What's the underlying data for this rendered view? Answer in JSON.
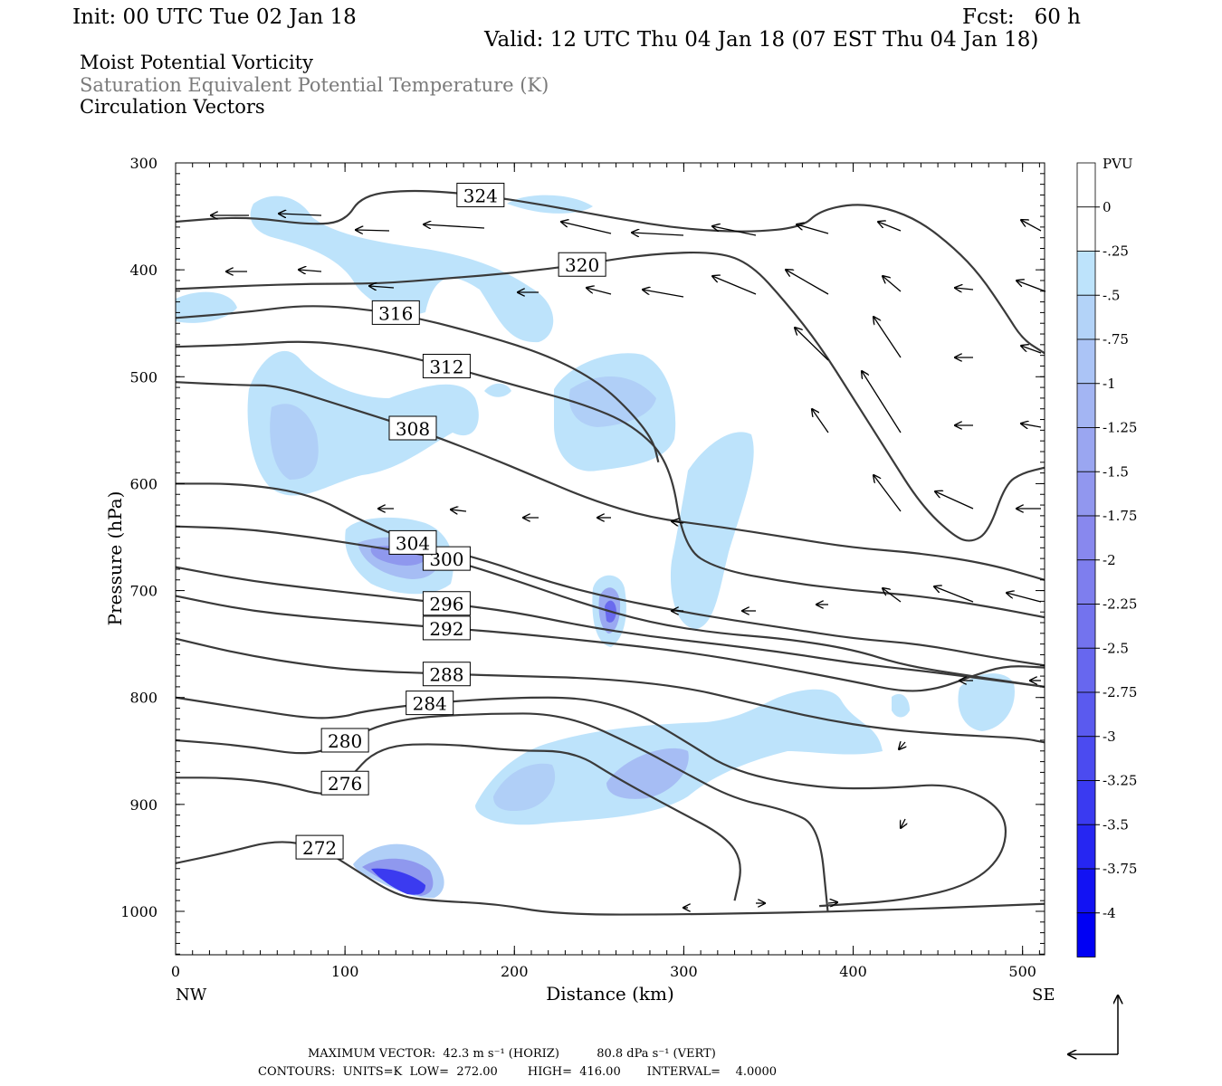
{
  "header": {
    "init": "Init: 00 UTC Tue 02 Jan 18",
    "fcst": "Fcst:   60 h",
    "valid": "Valid: 12 UTC Thu 04 Jan 18 (07 EST Thu 04 Jan 18)"
  },
  "titles": {
    "line1": "Moist Potential Vorticity",
    "line2": "Saturation Equivalent Potential Temperature (K)",
    "line3": "Circulation Vectors"
  },
  "footer": {
    "line1": "MAXIMUM VECTOR:  42.3 m s⁻¹ (HORIZ)          80.8 dPa s⁻¹ (VERT)",
    "line2": "CONTOURS:  UNITS=K  LOW=  272.00        HIGH=  416.00       INTERVAL=    4.0000"
  },
  "colors": {
    "contour": "#3a3a3a",
    "shade_025": "#bde3fb",
    "shade_050": "#b0cff7",
    "shade_075": "#a6bdf4",
    "shade_100": "#9aa9f1",
    "shade_125": "#8f98ee",
    "shade_150": "#7f7fef",
    "shade_200": "#6a6aee",
    "shade_250": "#5252ef",
    "shade_300": "#3b3bf0",
    "shade_400": "#0000f4"
  },
  "chart_data": {
    "type": "cross-section",
    "xlabel": "Distance (km)",
    "ylabel": "Pressure (hPa)",
    "xlim": [
      0,
      513
    ],
    "ylim": [
      1040,
      300
    ],
    "x_ticks": [
      0,
      100,
      200,
      300,
      400,
      500
    ],
    "y_ticks": [
      300,
      400,
      500,
      600,
      700,
      800,
      900,
      1000
    ],
    "x_end_labels": {
      "left": "NW",
      "right": "SE"
    },
    "colorbar": {
      "unit": "PVU",
      "levels": [
        "0",
        "-.25",
        "-.5",
        "-.75",
        "-1",
        "-1.25",
        "-1.5",
        "-1.75",
        "-2",
        "-2.25",
        "-2.5",
        "-2.75",
        "-3",
        "-3.25",
        "-3.5",
        "-3.75",
        "-4"
      ],
      "colors": [
        "#ffffff",
        "#ffffff",
        "#bde3fb",
        "#b3d3f8",
        "#abc4f6",
        "#a3b5f3",
        "#9aa6f1",
        "#9197ef",
        "#8888ee",
        "#7e7eee",
        "#7373ee",
        "#6767ef",
        "#5a5aef",
        "#4b4bf0",
        "#3a3af1",
        "#2626f2",
        "#1212f3",
        "#0000f4"
      ]
    },
    "theta_es_contours": [
      {
        "label": "272",
        "pts": [
          [
            0,
            955
          ],
          [
            30,
            945
          ],
          [
            60,
            933
          ],
          [
            85,
            940
          ],
          [
            105,
            960
          ],
          [
            130,
            985
          ],
          [
            150,
            990
          ],
          [
            190,
            993
          ],
          [
            225,
            1003
          ],
          [
            300,
            1003
          ],
          [
            400,
            1000
          ],
          [
            513,
            993
          ]
        ]
      },
      {
        "label": "276",
        "pts": [
          [
            0,
            875
          ],
          [
            30,
            875
          ],
          [
            60,
            880
          ],
          [
            90,
            893
          ],
          [
            100,
            880
          ],
          [
            120,
            845
          ],
          [
            160,
            843
          ],
          [
            200,
            850
          ],
          [
            235,
            850
          ],
          [
            260,
            875
          ],
          [
            295,
            905
          ],
          [
            325,
            930
          ],
          [
            335,
            955
          ],
          [
            330,
            990
          ]
        ]
      },
      {
        "label": "280",
        "pts": [
          [
            0,
            840
          ],
          [
            40,
            845
          ],
          [
            80,
            855
          ],
          [
            100,
            840
          ],
          [
            130,
            820
          ],
          [
            180,
            815
          ],
          [
            230,
            815
          ],
          [
            275,
            848
          ],
          [
            300,
            870
          ],
          [
            330,
            895
          ],
          [
            360,
            905
          ],
          [
            380,
            920
          ],
          [
            385,
            1000
          ]
        ]
      },
      {
        "label": "284",
        "pts": [
          [
            0,
            800
          ],
          [
            40,
            810
          ],
          [
            80,
            820
          ],
          [
            100,
            818
          ],
          [
            110,
            813
          ],
          [
            150,
            805
          ],
          [
            200,
            800
          ],
          [
            240,
            800
          ],
          [
            270,
            812
          ],
          [
            300,
            840
          ],
          [
            330,
            870
          ],
          [
            380,
            885
          ],
          [
            420,
            885
          ],
          [
            460,
            880
          ],
          [
            490,
            905
          ],
          [
            490,
            945
          ],
          [
            470,
            975
          ],
          [
            430,
            990
          ],
          [
            380,
            995
          ]
        ]
      },
      {
        "label": "288",
        "pts": [
          [
            0,
            745
          ],
          [
            40,
            760
          ],
          [
            80,
            770
          ],
          [
            110,
            775
          ],
          [
            160,
            778
          ],
          [
            200,
            780
          ],
          [
            250,
            782
          ],
          [
            300,
            790
          ],
          [
            340,
            805
          ],
          [
            380,
            820
          ],
          [
            420,
            830
          ],
          [
            460,
            835
          ],
          [
            500,
            838
          ],
          [
            513,
            842
          ]
        ]
      },
      {
        "label": "292",
        "pts": [
          [
            0,
            705
          ],
          [
            40,
            718
          ],
          [
            80,
            725
          ],
          [
            120,
            730
          ],
          [
            160,
            735
          ],
          [
            200,
            740
          ],
          [
            250,
            748
          ],
          [
            300,
            757
          ],
          [
            350,
            770
          ],
          [
            400,
            785
          ],
          [
            430,
            795
          ],
          [
            450,
            792
          ],
          [
            470,
            780
          ],
          [
            490,
            770
          ],
          [
            513,
            772
          ]
        ]
      },
      {
        "label": "296",
        "pts": [
          [
            0,
            678
          ],
          [
            40,
            690
          ],
          [
            80,
            698
          ],
          [
            120,
            705
          ],
          [
            160,
            712
          ],
          [
            200,
            720
          ],
          [
            240,
            733
          ],
          [
            280,
            743
          ],
          [
            320,
            750
          ],
          [
            360,
            758
          ],
          [
            400,
            768
          ],
          [
            440,
            775
          ],
          [
            480,
            783
          ],
          [
            513,
            790
          ]
        ]
      },
      {
        "label": "300",
        "pts": [
          [
            0,
            640
          ],
          [
            40,
            642
          ],
          [
            80,
            650
          ],
          [
            120,
            660
          ],
          [
            160,
            670
          ],
          [
            200,
            690
          ],
          [
            240,
            712
          ],
          [
            280,
            730
          ],
          [
            320,
            740
          ],
          [
            360,
            745
          ],
          [
            400,
            755
          ],
          [
            430,
            770
          ],
          [
            470,
            780
          ],
          [
            513,
            790
          ]
        ]
      },
      {
        "label": "304",
        "pts": [
          [
            0,
            600
          ],
          [
            40,
            600
          ],
          [
            80,
            610
          ],
          [
            110,
            635
          ],
          [
            140,
            655
          ],
          [
            180,
            670
          ],
          [
            220,
            692
          ],
          [
            260,
            708
          ],
          [
            300,
            720
          ],
          [
            330,
            728
          ],
          [
            360,
            735
          ],
          [
            400,
            745
          ],
          [
            440,
            750
          ],
          [
            480,
            762
          ],
          [
            513,
            770
          ]
        ]
      },
      {
        "label": "308",
        "pts": [
          [
            0,
            505
          ],
          [
            40,
            508
          ],
          [
            60,
            508
          ],
          [
            100,
            528
          ],
          [
            140,
            548
          ],
          [
            180,
            572
          ],
          [
            215,
            595
          ],
          [
            245,
            615
          ],
          [
            280,
            632
          ],
          [
            320,
            640
          ],
          [
            360,
            650
          ],
          [
            400,
            660
          ],
          [
            440,
            665
          ],
          [
            480,
            675
          ],
          [
            513,
            690
          ]
        ]
      },
      {
        "label": "312",
        "pts": [
          [
            0,
            472
          ],
          [
            40,
            470
          ],
          [
            80,
            466
          ],
          [
            120,
            475
          ],
          [
            160,
            490
          ],
          [
            200,
            508
          ],
          [
            240,
            525
          ],
          [
            270,
            545
          ],
          [
            292,
            580
          ],
          [
            300,
            660
          ],
          [
            320,
            680
          ],
          [
            360,
            692
          ],
          [
            400,
            700
          ],
          [
            440,
            705
          ],
          [
            480,
            715
          ],
          [
            513,
            725
          ]
        ]
      },
      {
        "label": "316",
        "pts": [
          [
            0,
            445
          ],
          [
            40,
            440
          ],
          [
            80,
            432
          ],
          [
            130,
            440
          ],
          [
            180,
            460
          ],
          [
            220,
            480
          ],
          [
            250,
            505
          ],
          [
            270,
            535
          ],
          [
            282,
            560
          ],
          [
            285,
            580
          ]
        ]
      },
      {
        "label": "320",
        "pts": [
          [
            0,
            418
          ],
          [
            40,
            415
          ],
          [
            80,
            413
          ],
          [
            120,
            413
          ],
          [
            160,
            408
          ],
          [
            200,
            403
          ],
          [
            240,
            395
          ],
          [
            280,
            385
          ],
          [
            320,
            383
          ],
          [
            340,
            395
          ],
          [
            360,
            430
          ],
          [
            380,
            470
          ],
          [
            400,
            520
          ],
          [
            420,
            570
          ],
          [
            440,
            620
          ],
          [
            460,
            650
          ],
          [
            470,
            655
          ],
          [
            480,
            645
          ],
          [
            490,
            600
          ],
          [
            500,
            590
          ],
          [
            513,
            585
          ]
        ]
      },
      {
        "label": "324",
        "pts": [
          [
            0,
            355
          ],
          [
            40,
            350
          ],
          [
            80,
            358
          ],
          [
            100,
            355
          ],
          [
            110,
            330
          ],
          [
            140,
            325
          ],
          [
            180,
            330
          ],
          [
            220,
            340
          ],
          [
            260,
            352
          ],
          [
            300,
            362
          ],
          [
            340,
            365
          ],
          [
            370,
            360
          ],
          [
            380,
            345
          ],
          [
            400,
            338
          ],
          [
            420,
            342
          ],
          [
            440,
            355
          ],
          [
            460,
            380
          ],
          [
            475,
            405
          ],
          [
            490,
            440
          ],
          [
            500,
            465
          ],
          [
            513,
            478
          ]
        ]
      }
    ]
  }
}
